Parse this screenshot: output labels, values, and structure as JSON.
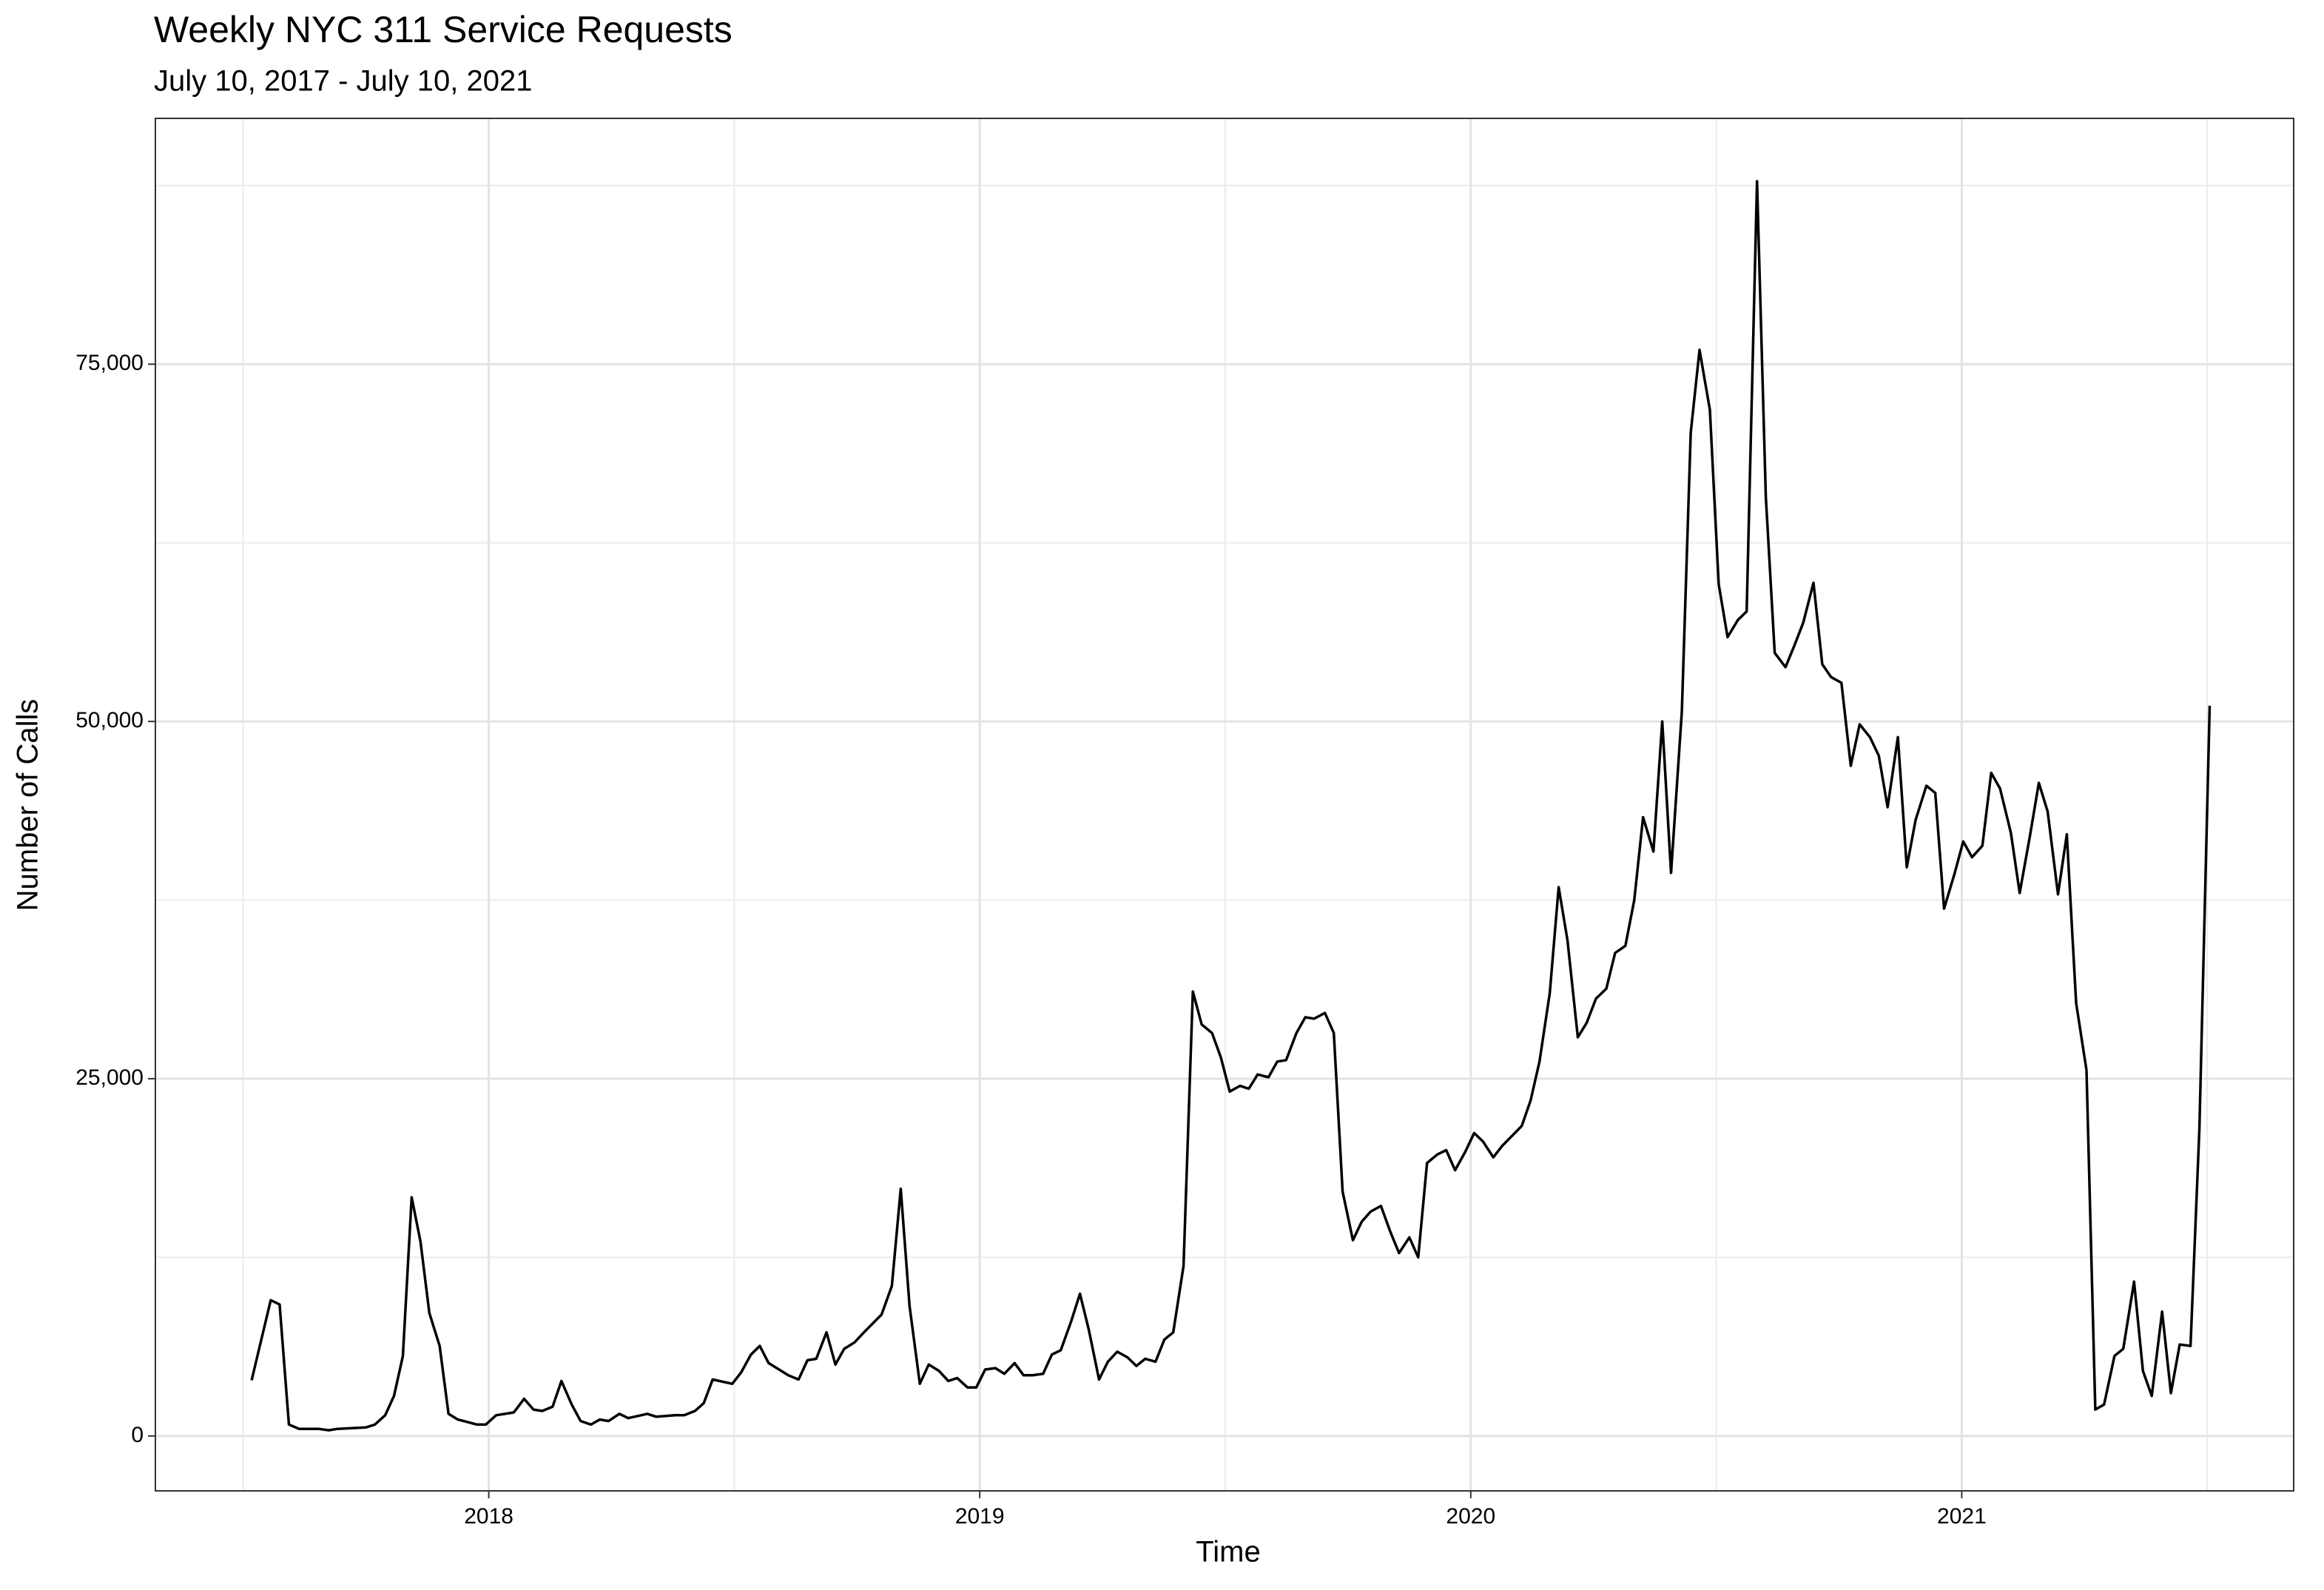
{
  "chart_data": {
    "type": "line",
    "title": "Weekly NYC 311 Service Requests",
    "subtitle": "July 10, 2017 - July 10, 2021",
    "x_label": "Time",
    "y_label": "Number of Calls",
    "xlim": [
      2017.321,
      2021.676
    ],
    "ylim": [
      -3840,
      92200
    ],
    "xticks": [
      2018,
      2019,
      2020,
      2021
    ],
    "yticks": [
      0,
      {
        "value": 25000,
        "label": "25,000"
      },
      {
        "value": 50000,
        "label": "50,000"
      },
      {
        "value": 75000,
        "label": "75,000"
      }
    ],
    "grid": true,
    "x": [
      2017.517,
      2017.556,
      2017.574,
      2017.593,
      2017.614,
      2017.653,
      2017.674,
      2017.692,
      2017.75,
      2017.768,
      2017.789,
      2017.807,
      2017.825,
      2017.843,
      2017.861,
      2017.879,
      2017.9,
      2017.918,
      2017.937,
      2017.976,
      2017.994,
      2018.015,
      2018.051,
      2018.072,
      2018.091,
      2018.109,
      2018.13,
      2018.148,
      2018.169,
      2018.187,
      2018.208,
      2018.226,
      2018.244,
      2018.266,
      2018.284,
      2018.323,
      2018.341,
      2018.38,
      2018.398,
      2018.42,
      2018.438,
      2018.456,
      2018.496,
      2018.514,
      2018.534,
      2018.552,
      2018.57,
      2018.61,
      2018.631,
      2018.649,
      2018.667,
      2018.688,
      2018.706,
      2018.724,
      2018.745,
      2018.764,
      2018.8,
      2018.821,
      2018.839,
      2018.857,
      2018.878,
      2018.896,
      2018.917,
      2018.936,
      2018.954,
      2018.975,
      2018.993,
      2019.011,
      2019.032,
      2019.05,
      2019.071,
      2019.089,
      2019.108,
      2019.129,
      2019.147,
      2019.165,
      2019.186,
      2019.204,
      2019.222,
      2019.243,
      2019.261,
      2019.28,
      2019.301,
      2019.319,
      2019.337,
      2019.358,
      2019.376,
      2019.394,
      2019.415,
      2019.434,
      2019.452,
      2019.473,
      2019.491,
      2019.509,
      2019.53,
      2019.548,
      2019.566,
      2019.588,
      2019.606,
      2019.624,
      2019.645,
      2019.663,
      2019.681,
      2019.703,
      2019.721,
      2019.739,
      2019.76,
      2019.778,
      2019.796,
      2019.817,
      2019.836,
      2019.854,
      2019.875,
      2019.893,
      2019.911,
      2019.932,
      2019.95,
      2019.968,
      2019.989,
      2020.007,
      2020.025,
      2020.046,
      2020.064,
      2020.104,
      2020.122,
      2020.14,
      2020.161,
      2020.179,
      2020.197,
      2020.218,
      2020.236,
      2020.255,
      2020.276,
      2020.294,
      2020.315,
      2020.333,
      2020.351,
      2020.372,
      2020.39,
      2020.408,
      2020.43,
      2020.448,
      2020.466,
      2020.487,
      2020.505,
      2020.523,
      2020.544,
      2020.562,
      2020.583,
      2020.601,
      2020.619,
      2020.641,
      2020.659,
      2020.677,
      2020.698,
      2020.716,
      2020.734,
      2020.755,
      2020.774,
      2020.792,
      2020.813,
      2020.831,
      2020.849,
      2020.87,
      2020.888,
      2020.906,
      2020.928,
      2020.946,
      2020.964,
      2020.985,
      2021.003,
      2021.021,
      2021.042,
      2021.06,
      2021.078,
      2021.1,
      2021.118,
      2021.139,
      2021.157,
      2021.175,
      2021.196,
      2021.214,
      2021.233,
      2021.254,
      2021.272,
      2021.29,
      2021.311,
      2021.329,
      2021.351,
      2021.369,
      2021.387,
      2021.408,
      2021.426,
      2021.444,
      2021.466,
      2021.484,
      2021.505
    ],
    "series": [
      {
        "name": "Calls",
        "color": "#000000",
        "values": [
          3900,
          9500,
          9200,
          800,
          500,
          500,
          400,
          500,
          600,
          800,
          1450,
          2800,
          5600,
          16700,
          13600,
          8600,
          6300,
          1550,
          1150,
          800,
          800,
          1450,
          1650,
          2600,
          1850,
          1750,
          2050,
          3850,
          2200,
          1050,
          800,
          1150,
          1050,
          1550,
          1250,
          1550,
          1350,
          1450,
          1450,
          1750,
          2300,
          3950,
          3650,
          4450,
          5700,
          6300,
          5100,
          4250,
          3950,
          5300,
          5400,
          7250,
          5000,
          6100,
          6550,
          7250,
          8500,
          10500,
          17300,
          9100,
          3650,
          5000,
          4550,
          3850,
          4050,
          3400,
          3400,
          4650,
          4750,
          4350,
          5100,
          4250,
          4250,
          4350,
          5700,
          6000,
          8000,
          9950,
          7450,
          3950,
          5200,
          5900,
          5500,
          4900,
          5400,
          5200,
          6750,
          7250,
          11900,
          31100,
          28800,
          28200,
          26500,
          24100,
          24500,
          24300,
          25300,
          25100,
          26200,
          26300,
          28200,
          29300,
          29200,
          29600,
          28200,
          17100,
          13700,
          15000,
          15700,
          16100,
          14300,
          12800,
          13900,
          12500,
          19100,
          19700,
          20000,
          18600,
          19900,
          21200,
          20600,
          19500,
          20300,
          21700,
          23500,
          26200,
          31000,
          38400,
          34700,
          27900,
          28900,
          30600,
          31300,
          33800,
          34300,
          37500,
          43300,
          40900,
          50000,
          39400,
          50700,
          70200,
          76000,
          71800,
          59600,
          55900,
          57100,
          57700,
          87800,
          65700,
          54800,
          53800,
          55300,
          56900,
          59700,
          54000,
          53100,
          52700,
          46900,
          49800,
          48900,
          47600,
          44000,
          48900,
          39800,
          43100,
          45500,
          45000,
          36900,
          39300,
          41600,
          40500,
          41300,
          46400,
          45300,
          42200,
          38000,
          42000,
          45700,
          43700,
          37900,
          42100,
          30300,
          25600,
          1850,
          2200,
          5600,
          6100,
          10800,
          4550,
          2800,
          8700,
          3000,
          6400,
          6300,
          21500,
          51100
        ]
      }
    ]
  }
}
